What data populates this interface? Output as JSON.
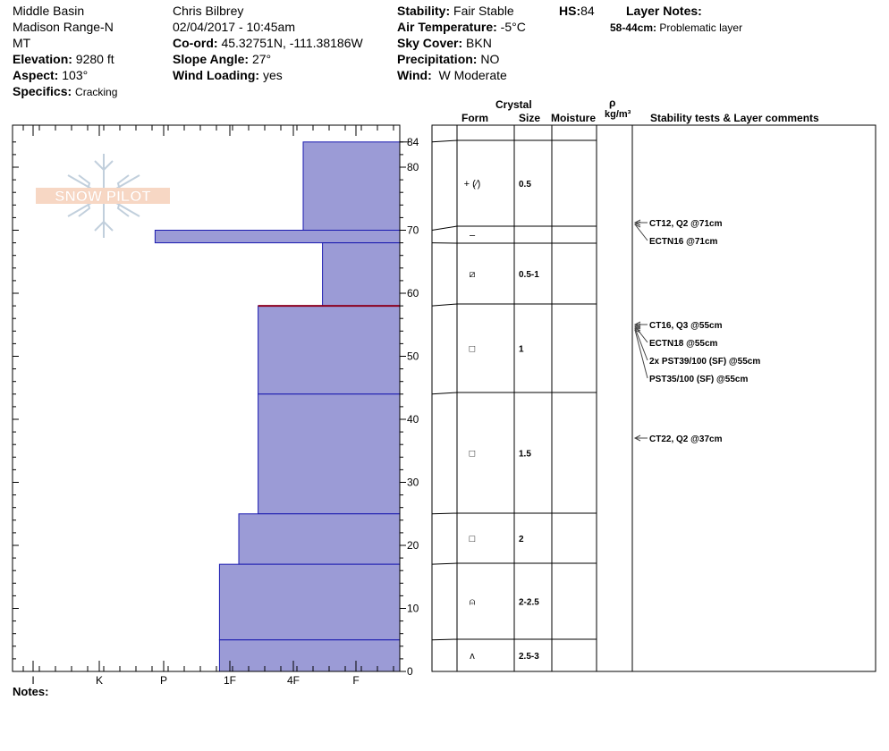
{
  "header": {
    "col1": {
      "location1": "Middle Basin",
      "location2": "Madison Range-N",
      "state": "MT",
      "elevation_label": "Elevation:",
      "elevation_value": "9280 ft",
      "aspect_label": "Aspect:",
      "aspect_value": "103°",
      "specifics_label": "Specifics:",
      "specifics_value": "Cracking"
    },
    "col2": {
      "observer": "Chris Bilbrey",
      "datetime": "02/04/2017 - 10:45am",
      "coord_label": "Co-ord:",
      "coord_value": "45.32751N, -111.38186W",
      "slope_label": "Slope Angle:",
      "slope_value": "27°",
      "wind_loading_label": "Wind Loading:",
      "wind_loading_value": "yes"
    },
    "col3": {
      "stability_label": "Stability:",
      "stability_value": "Fair Stable",
      "air_temp_label": "Air Temperature:",
      "air_temp_value": "-5°C",
      "sky_label": "Sky Cover:",
      "sky_value": "BKN",
      "precip_label": "Precipitation:",
      "precip_value": "NO",
      "wind_label": "Wind:",
      "wind_value": "W Moderate"
    },
    "hs_label": "HS:",
    "hs_value": "84",
    "layer_notes_title": "Layer Notes:",
    "layer_note_range": "58-44cm:",
    "layer_note_text": "Problematic layer"
  },
  "logo_text": "SNOW PILOT",
  "table_headers": {
    "crystal": "Crystal",
    "form": "Form",
    "size": "Size",
    "moisture": "Moisture",
    "rho": "ρ",
    "density_unit": "kg/m³",
    "stability_comments": "Stability tests & Layer comments"
  },
  "notes_label": "Notes:",
  "chart_data": {
    "type": "bar",
    "orientation": "horizontal",
    "y_axis": {
      "label": "",
      "range": [
        0,
        84
      ],
      "ticks": [
        0,
        10,
        20,
        30,
        40,
        50,
        60,
        70,
        80,
        84
      ]
    },
    "x_axis": {
      "label": "",
      "tick_labels": [
        "I",
        "K",
        "P",
        "1F",
        "4F",
        "F"
      ],
      "range": [
        0,
        6
      ]
    },
    "hardness_scale": {
      "F": 1,
      "4F": 2,
      "1F": 3,
      "P": 4,
      "K": 5,
      "I": 6
    },
    "layers": [
      {
        "top": 84,
        "bottom": 70,
        "hardness": 1.5,
        "hardness_label": "4F-F"
      },
      {
        "top": 70,
        "bottom": 68,
        "hardness": 3.8,
        "hardness_label": "P-"
      },
      {
        "top": 68,
        "bottom": 58,
        "hardness": 1.2,
        "hardness_label": "F+"
      },
      {
        "top": 58,
        "bottom": 44,
        "hardness": 2.2,
        "hardness_label": "4F"
      },
      {
        "top": 44,
        "bottom": 25,
        "hardness": 2.2,
        "hardness_label": "4F"
      },
      {
        "top": 25,
        "bottom": 17,
        "hardness": 2.5,
        "hardness_label": "4F+"
      },
      {
        "top": 17,
        "bottom": 5,
        "hardness": 2.8,
        "hardness_label": "1F-"
      },
      {
        "top": 5,
        "bottom": 0,
        "hardness": 2.8,
        "hardness_label": "1F-"
      }
    ],
    "problematic_layer_depth": 58
  },
  "profile_rows": [
    {
      "top": 84,
      "bottom": 70,
      "form_symbol": "+ (⁄)",
      "size": "0.5"
    },
    {
      "top": 70,
      "bottom": 68,
      "form_symbol": "–",
      "size": ""
    },
    {
      "top": 68,
      "bottom": 58,
      "form_symbol": "⧄",
      "size": "0.5-1"
    },
    {
      "top": 58,
      "bottom": 44,
      "form_symbol": "□",
      "size": "1"
    },
    {
      "top": 44,
      "bottom": 25,
      "form_symbol": "□",
      "size": "1.5"
    },
    {
      "top": 25,
      "bottom": 17,
      "form_symbol": "□",
      "size": "2"
    },
    {
      "top": 17,
      "bottom": 5,
      "form_symbol": "⍝",
      "size": "2-2.5"
    },
    {
      "top": 5,
      "bottom": 0,
      "form_symbol": "ʌ",
      "size": "2.5-3"
    }
  ],
  "stability_tests": [
    {
      "depth": 71,
      "text": "CT12, Q2 @71cm"
    },
    {
      "depth": 71,
      "text": "ECTN16 @71cm"
    },
    {
      "depth": 55,
      "text": "CT16, Q3 @55cm"
    },
    {
      "depth": 55,
      "text": "ECTN18 @55cm"
    },
    {
      "depth": 55,
      "text": "2x PST39/100 (SF) @55cm"
    },
    {
      "depth": 55,
      "text": "PST35/100 (SF) @55cm"
    },
    {
      "depth": 37,
      "text": "CT22, Q2 @37cm"
    }
  ]
}
